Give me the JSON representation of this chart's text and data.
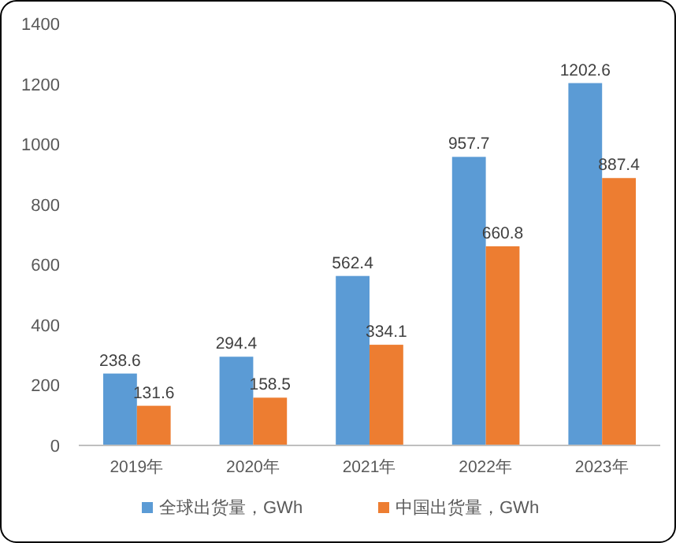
{
  "chart_data": {
    "type": "bar",
    "categories": [
      "2019年",
      "2020年",
      "2021年",
      "2022年",
      "2023年"
    ],
    "series": [
      {
        "name": "全球出货量，GWh",
        "color": "#5b9bd5",
        "values": [
          238.6,
          294.4,
          562.4,
          957.7,
          1202.6
        ]
      },
      {
        "name": "中国出货量，GWh",
        "color": "#ed7d31",
        "values": [
          131.6,
          158.5,
          334.1,
          660.8,
          887.4
        ]
      }
    ],
    "ylim": [
      0,
      1400
    ],
    "yticks": [
      0,
      200,
      400,
      600,
      800,
      1000,
      1200,
      1400
    ],
    "data_labels": true,
    "grid": false,
    "legend": "bottom"
  }
}
